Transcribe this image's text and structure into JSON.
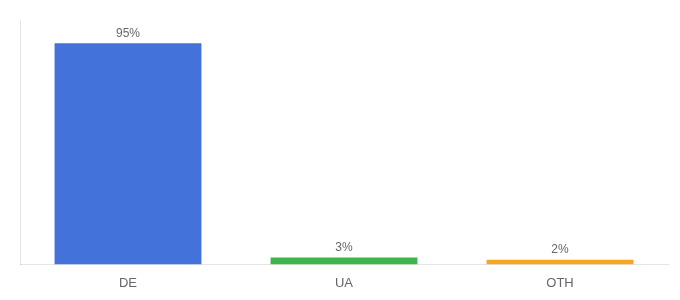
{
  "chart_data": {
    "type": "bar",
    "categories": [
      "DE",
      "UA",
      "OTH"
    ],
    "values": [
      95,
      3,
      2
    ],
    "value_labels": [
      "95%",
      "3%",
      "2%"
    ],
    "colors": [
      "#4472db",
      "#3db54a",
      "#f5a623"
    ],
    "ylim": [
      0,
      105
    ],
    "data_labels": true,
    "tick_labels": "x",
    "grid": false
  }
}
